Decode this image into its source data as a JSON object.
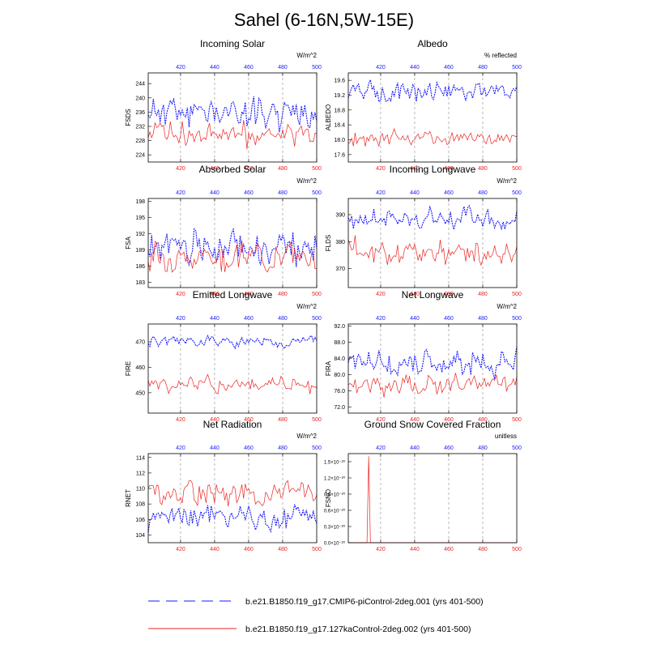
{
  "page_title": "Sahel (6-16N,5W-15E)",
  "colors": {
    "blue": "#1a1aff",
    "red": "#ee2222",
    "grid": "#888888"
  },
  "legend": [
    {
      "label": "b.e21.B1850.f19_g17.CMIP6-piControl-2deg.001 (yrs 401-500)",
      "color": "#1a1aff",
      "style": "dashed"
    },
    {
      "label": "b.e21.B1850.f19_g17.127kaControl-2deg.002 (yrs 401-500)",
      "color": "#ee2222",
      "style": "solid"
    }
  ],
  "chart_data": [
    {
      "type": "line",
      "title": "Incoming Solar",
      "ylabel": "FSDS",
      "units": "W/m^2",
      "xlim": [
        401,
        500
      ],
      "xticks": [
        "420",
        "440",
        "460",
        "480",
        "500"
      ],
      "ylim": [
        222,
        247
      ],
      "yticks": [
        "224",
        "228",
        "232",
        "236",
        "240",
        "244"
      ],
      "series": [
        {
          "name": "piControl",
          "mean": 236,
          "amp": 3.2,
          "seed": 11
        },
        {
          "name": "127ka",
          "mean": 230,
          "amp": 2.6,
          "seed": 12
        }
      ]
    },
    {
      "type": "line",
      "title": "Albedo",
      "ylabel": "ALBEDO",
      "units": "% reflected",
      "xlim": [
        401,
        500
      ],
      "xticks": [
        "420",
        "440",
        "460",
        "480",
        "500"
      ],
      "ylim": [
        17.4,
        19.8
      ],
      "yticks": [
        "17.6",
        "18.0",
        "18.4",
        "18.8",
        "19.2",
        "19.6"
      ],
      "series": [
        {
          "name": "piControl",
          "mean": 19.3,
          "amp": 0.18,
          "seed": 21
        },
        {
          "name": "127ka",
          "mean": 18.05,
          "amp": 0.14,
          "seed": 22
        }
      ]
    },
    {
      "type": "line",
      "title": "Absorbed Solar",
      "ylabel": "FSA",
      "units": "W/m^2",
      "xlim": [
        401,
        500
      ],
      "xticks": [
        "420",
        "440",
        "460",
        "480",
        "500"
      ],
      "ylim": [
        182,
        198.5
      ],
      "yticks": [
        "183",
        "186",
        "189",
        "192",
        "195",
        "198"
      ],
      "series": [
        {
          "name": "piControl",
          "mean": 189.5,
          "amp": 2.2,
          "seed": 31
        },
        {
          "name": "127ka",
          "mean": 187.8,
          "amp": 1.9,
          "seed": 32
        }
      ]
    },
    {
      "type": "line",
      "title": "Incoming Longwave",
      "ylabel": "FLDS",
      "units": "W/m^2",
      "xlim": [
        401,
        500
      ],
      "xticks": [
        "420",
        "440",
        "460",
        "480",
        "500"
      ],
      "ylim": [
        363,
        396
      ],
      "yticks": [
        "370",
        "380",
        "390"
      ],
      "series": [
        {
          "name": "piControl",
          "mean": 388,
          "amp": 3.0,
          "seed": 41
        },
        {
          "name": "127ka",
          "mean": 376,
          "amp": 3.4,
          "seed": 42
        }
      ]
    },
    {
      "type": "line",
      "title": "Emitted Longwave",
      "ylabel": "FIRE",
      "units": "W/m^2",
      "xlim": [
        401,
        500
      ],
      "xticks": [
        "420",
        "440",
        "460",
        "480",
        "500"
      ],
      "ylim": [
        442,
        477
      ],
      "yticks": [
        "450",
        "460",
        "470"
      ],
      "series": [
        {
          "name": "piControl",
          "mean": 470,
          "amp": 1.6,
          "seed": 51
        },
        {
          "name": "127ka",
          "mean": 453,
          "amp": 2.6,
          "seed": 52
        }
      ]
    },
    {
      "type": "line",
      "title": "Net Longwave",
      "ylabel": "FIRA",
      "units": "W/m^2",
      "xlim": [
        401,
        500
      ],
      "xticks": [
        "420",
        "440",
        "460",
        "480",
        "500"
      ],
      "ylim": [
        70.5,
        92.5
      ],
      "yticks": [
        "72.0",
        "76.0",
        "80.0",
        "84.0",
        "88.0",
        "92.0"
      ],
      "series": [
        {
          "name": "piControl",
          "mean": 82.5,
          "amp": 2.4,
          "seed": 61
        },
        {
          "name": "127ka",
          "mean": 77.5,
          "amp": 1.7,
          "seed": 62
        }
      ]
    },
    {
      "type": "line",
      "title": "Net Radiation",
      "ylabel": "RNET",
      "units": "W/m^2",
      "xlim": [
        401,
        500
      ],
      "xticks": [
        "420",
        "440",
        "460",
        "480",
        "500"
      ],
      "ylim": [
        103,
        114.5
      ],
      "yticks": [
        "104",
        "106",
        "108",
        "110",
        "112",
        "114"
      ],
      "series": [
        {
          "name": "piControl",
          "mean": 106.5,
          "amp": 1.2,
          "seed": 71
        },
        {
          "name": "127ka",
          "mean": 109.3,
          "amp": 1.3,
          "seed": 72
        }
      ]
    },
    {
      "type": "line",
      "title": "Ground Snow Covered Fraction",
      "ylabel": "FSNO",
      "units": "unitless",
      "xlim": [
        401,
        500
      ],
      "xticks": [
        "420",
        "440",
        "460",
        "480",
        "500"
      ],
      "ylim": [
        0,
        1.65
      ],
      "yticks": [
        "0.0×10⁻²⁰",
        "0.3×10⁻²⁰",
        "0.6×10⁻²⁰",
        "0.9×10⁻²⁰",
        "1.2×10⁻²⁰",
        "1.5×10⁻²⁰"
      ],
      "series": [
        {
          "name": "piControl",
          "points": []
        },
        {
          "name": "127ka",
          "points": [
            [
              401,
              0
            ],
            [
              412,
              0
            ],
            [
              413,
              1.6
            ],
            [
              414,
              0
            ],
            [
              500,
              0
            ]
          ]
        }
      ]
    }
  ]
}
